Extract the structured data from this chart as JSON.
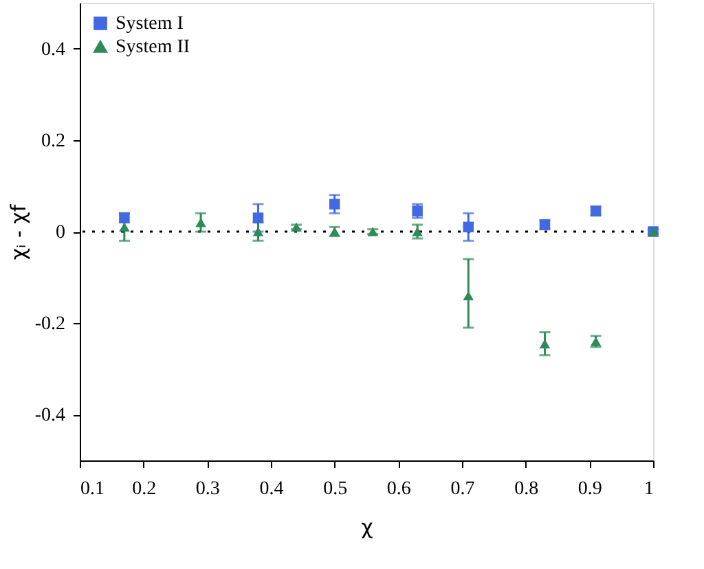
{
  "chart_data": {
    "type": "scatter",
    "xlabel": "χ",
    "ylabel": "χᵢ - χf",
    "xlim": [
      0.1,
      1.0
    ],
    "xticks": [
      0.1,
      0.2,
      0.3,
      0.4,
      0.5,
      0.6,
      0.7,
      0.8,
      0.9,
      {
        "value": 1,
        "label": "1"
      }
    ],
    "ylim": [
      -0.5,
      0.5
    ],
    "yticks": [
      {
        "value": -0.4,
        "label": "-0.4"
      },
      {
        "value": -0.2,
        "label": "-0.2"
      },
      {
        "value": 0,
        "label": "0"
      },
      0.2,
      0.4
    ],
    "grid": false,
    "legend": "top left",
    "ref_lines": [
      {
        "axis": "y",
        "value": 0,
        "color": "#000000",
        "line_style": "dotted"
      }
    ],
    "series": [
      {
        "name": "System I",
        "color": "#4169e1",
        "marker": "square",
        "x": [
          0.17,
          0.38,
          0.5,
          0.63,
          0.71,
          0.83,
          0.91,
          1.0
        ],
        "values": [
          0.03,
          0.03,
          0.06,
          0.045,
          0.01,
          0.015,
          0.045,
          0
        ],
        "errors": [
          0.01,
          0.03,
          0.02,
          0.015,
          0.03,
          0.01,
          0.01,
          0.005
        ]
      },
      {
        "name": "System II",
        "color": "#2e8b57",
        "marker": "triangle",
        "x": [
          0.17,
          0.29,
          0.38,
          0.44,
          0.5,
          0.56,
          0.63,
          0.71,
          0.83,
          0.91,
          1.0
        ],
        "values": [
          0.01,
          0.02,
          0,
          0.01,
          0,
          0,
          0,
          -0.14,
          -0.245,
          -0.24,
          0
        ],
        "errors": [
          0.03,
          0.02,
          0.02,
          0.005,
          0.01,
          0.005,
          0.015,
          [
            -0.21,
            -0.06
          ],
          0.025,
          0.012,
          0.005
        ]
      }
    ]
  }
}
